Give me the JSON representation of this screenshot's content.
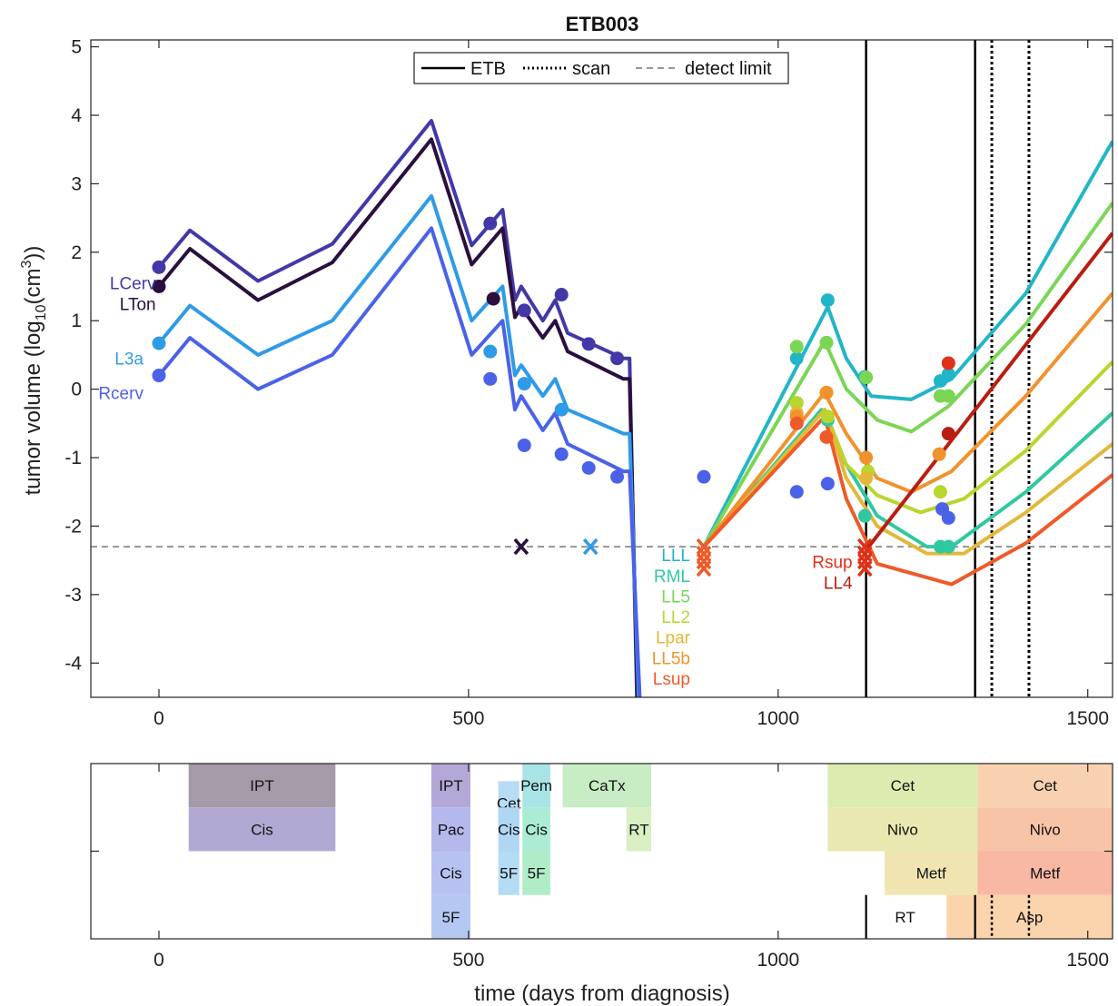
{
  "chart_data": [
    {
      "type": "line",
      "title": "ETB003",
      "xlabel": "",
      "ylabel_parts": [
        "tumor volume (log",
        "10",
        "(cm",
        "3",
        "))"
      ],
      "xlim": [
        -110,
        1540
      ],
      "ylim": [
        -4.5,
        5.1
      ],
      "xticks": [
        0,
        500,
        1000,
        1500
      ],
      "yticks": [
        5,
        4,
        3,
        2,
        1,
        0,
        -1,
        -2,
        -3,
        -4
      ],
      "legend": {
        "placement": "top-center",
        "entries": [
          {
            "label": "ETB",
            "style": "solid"
          },
          {
            "label": "scan",
            "style": "dotted"
          },
          {
            "label": "detect limit",
            "style": "dashed"
          }
        ]
      },
      "detect_limit": -2.3,
      "etb_days": [
        1142,
        1318
      ],
      "scan_days": [
        1345,
        1405
      ],
      "series": [
        {
          "name": "LCerv",
          "color": "#4338a8",
          "label_x": -5,
          "label_y": 1.55,
          "line": [
            [
              0,
              1.78
            ],
            [
              50,
              2.32
            ],
            [
              160,
              1.58
            ],
            [
              280,
              2.12
            ],
            [
              440,
              3.92
            ],
            [
              505,
              2.1
            ],
            [
              555,
              2.62
            ],
            [
              575,
              1.3
            ],
            [
              585,
              1.5
            ],
            [
              620,
              1.0
            ],
            [
              640,
              1.3
            ],
            [
              660,
              0.82
            ],
            [
              750,
              0.45
            ],
            [
              760,
              0.45
            ],
            [
              772,
              -4.6
            ]
          ],
          "points": [
            [
              0,
              1.78
            ],
            [
              535,
              2.42
            ],
            [
              590,
              1.15
            ],
            [
              650,
              1.38
            ],
            [
              694,
              0.66
            ],
            [
              740,
              0.45
            ]
          ]
        },
        {
          "name": "LTon",
          "color": "#2a0f3f",
          "label_x": -5,
          "label_y": 1.25,
          "line": [
            [
              0,
              1.5
            ],
            [
              50,
              2.05
            ],
            [
              160,
              1.3
            ],
            [
              280,
              1.85
            ],
            [
              440,
              3.65
            ],
            [
              505,
              1.82
            ],
            [
              555,
              2.35
            ],
            [
              575,
              1.05
            ],
            [
              585,
              1.2
            ],
            [
              620,
              0.75
            ],
            [
              640,
              1.0
            ],
            [
              660,
              0.55
            ],
            [
              750,
              0.15
            ],
            [
              760,
              0.15
            ],
            [
              773,
              -4.6
            ]
          ],
          "points": [
            [
              0,
              1.5
            ],
            [
              540,
              1.32
            ]
          ],
          "marker_x": [
            585
          ]
        },
        {
          "name": "L3a",
          "color": "#2f9be6",
          "label_x": -25,
          "label_y": 0.45,
          "line": [
            [
              0,
              0.67
            ],
            [
              50,
              1.22
            ],
            [
              160,
              0.5
            ],
            [
              280,
              1.0
            ],
            [
              440,
              2.82
            ],
            [
              505,
              1.0
            ],
            [
              555,
              1.5
            ],
            [
              575,
              0.2
            ],
            [
              585,
              0.35
            ],
            [
              620,
              -0.1
            ],
            [
              640,
              0.15
            ],
            [
              660,
              -0.3
            ],
            [
              750,
              -0.65
            ],
            [
              760,
              -0.65
            ],
            [
              775,
              -4.6
            ]
          ],
          "points": [
            [
              0,
              0.67
            ],
            [
              535,
              0.55
            ],
            [
              590,
              0.08
            ],
            [
              650,
              -0.3
            ]
          ],
          "marker_x": [
            697
          ]
        },
        {
          "name": "Rcerv",
          "color": "#4a62e8",
          "label_x": -25,
          "label_y": -0.05,
          "line": [
            [
              0,
              0.2
            ],
            [
              50,
              0.75
            ],
            [
              160,
              0.0
            ],
            [
              280,
              0.5
            ],
            [
              440,
              2.35
            ],
            [
              505,
              0.5
            ],
            [
              555,
              1.0
            ],
            [
              575,
              -0.3
            ],
            [
              585,
              -0.1
            ],
            [
              620,
              -0.6
            ],
            [
              640,
              -0.35
            ],
            [
              660,
              -0.8
            ],
            [
              750,
              -1.2
            ],
            [
              760,
              -1.2
            ],
            [
              777,
              -4.6
            ]
          ],
          "points": [
            [
              0,
              0.2
            ],
            [
              535,
              0.15
            ],
            [
              590,
              -0.82
            ],
            [
              650,
              -0.95
            ],
            [
              694,
              -1.15
            ],
            [
              740,
              -1.28
            ],
            [
              880,
              -1.28
            ],
            [
              1030,
              -1.5
            ],
            [
              1080,
              -1.38
            ],
            [
              1265,
              -1.75
            ],
            [
              1275,
              -1.88
            ]
          ]
        },
        {
          "name": "LLL",
          "color": "#22b5c8",
          "label_x": 858,
          "label_y": -2.42,
          "line": [
            [
              880,
              -2.3
            ],
            [
              1080,
              1.2
            ],
            [
              1110,
              0.45
            ],
            [
              1150,
              -0.1
            ],
            [
              1215,
              -0.15
            ],
            [
              1280,
              0.15
            ],
            [
              1400,
              1.4
            ],
            [
              1540,
              3.62
            ]
          ],
          "points": [
            [
              1030,
              0.45
            ],
            [
              1080,
              1.3
            ],
            [
              1140,
              0.18
            ],
            [
              1262,
              0.12
            ],
            [
              1275,
              0.22
            ]
          ]
        },
        {
          "name": "RML",
          "color": "#2fc8a0",
          "label_x": 858,
          "label_y": -2.72,
          "line": [
            [
              880,
              -2.3
            ],
            [
              1070,
              -0.3
            ],
            [
              1100,
              -0.95
            ],
            [
              1160,
              -1.85
            ],
            [
              1240,
              -2.3
            ],
            [
              1280,
              -2.3
            ],
            [
              1400,
              -1.5
            ],
            [
              1540,
              -0.35
            ]
          ],
          "points": [
            [
              1030,
              -0.2
            ],
            [
              1080,
              -0.45
            ],
            [
              1140,
              -1.85
            ],
            [
              1262,
              -2.3
            ],
            [
              1275,
              -2.3
            ]
          ]
        },
        {
          "name": "LL5",
          "color": "#7ad654",
          "label_x": 858,
          "label_y": -3.02,
          "line": [
            [
              880,
              -2.3
            ],
            [
              1075,
              0.7
            ],
            [
              1110,
              0.0
            ],
            [
              1160,
              -0.45
            ],
            [
              1215,
              -0.62
            ],
            [
              1275,
              -0.25
            ],
            [
              1400,
              0.95
            ],
            [
              1540,
              2.72
            ]
          ],
          "points": [
            [
              1030,
              0.62
            ],
            [
              1078,
              0.68
            ],
            [
              1142,
              0.17
            ],
            [
              1262,
              -0.1
            ],
            [
              1275,
              -0.1
            ]
          ]
        },
        {
          "name": "LL2",
          "color": "#b8d62e",
          "label_x": 858,
          "label_y": -3.32,
          "line": [
            [
              880,
              -2.3
            ],
            [
              1075,
              -0.3
            ],
            [
              1110,
              -1.1
            ],
            [
              1160,
              -1.55
            ],
            [
              1230,
              -1.8
            ],
            [
              1300,
              -1.6
            ],
            [
              1400,
              -0.9
            ],
            [
              1540,
              0.4
            ]
          ],
          "points": [
            [
              1030,
              -0.2
            ],
            [
              1080,
              -0.4
            ],
            [
              1145,
              -1.2
            ],
            [
              1262,
              -1.5
            ]
          ]
        },
        {
          "name": "Lpar",
          "color": "#e3b83a",
          "label_x": 858,
          "label_y": -3.62,
          "line": [
            [
              880,
              -2.3
            ],
            [
              1075,
              -0.3
            ],
            [
              1110,
              -1.3
            ],
            [
              1160,
              -2.0
            ],
            [
              1240,
              -2.4
            ],
            [
              1300,
              -2.4
            ],
            [
              1400,
              -1.8
            ],
            [
              1540,
              -0.8
            ]
          ],
          "points": [
            [
              1030,
              -0.35
            ],
            [
              1078,
              -0.05
            ],
            [
              1142,
              -1.3
            ]
          ]
        },
        {
          "name": "LL5b",
          "color": "#f0922e",
          "label_x": 858,
          "label_y": -3.92,
          "line": [
            [
              880,
              -2.3
            ],
            [
              1075,
              -0.05
            ],
            [
              1110,
              -0.65
            ],
            [
              1160,
              -1.3
            ],
            [
              1215,
              -1.5
            ],
            [
              1280,
              -1.2
            ],
            [
              1400,
              -0.1
            ],
            [
              1540,
              1.4
            ]
          ],
          "points": [
            [
              1030,
              -0.4
            ],
            [
              1078,
              -0.05
            ],
            [
              1142,
              -1.0
            ],
            [
              1260,
              -0.95
            ]
          ]
        },
        {
          "name": "Lsup",
          "color": "#ef5a28",
          "label_x": 858,
          "label_y": -4.22,
          "line": [
            [
              880,
              -2.3
            ],
            [
              1075,
              -0.4
            ],
            [
              1110,
              -1.6
            ],
            [
              1160,
              -2.55
            ],
            [
              1280,
              -2.85
            ],
            [
              1400,
              -2.25
            ],
            [
              1540,
              -1.25
            ]
          ],
          "points": [
            [
              1030,
              -0.5
            ],
            [
              1078,
              -0.7
            ]
          ],
          "marker_x": [
            880
          ]
        },
        {
          "name": "Rsup",
          "color": "#e03018",
          "label_x": 1120,
          "label_y": -2.52,
          "line": [],
          "points": [
            [
              1275,
              0.38
            ]
          ],
          "marker_x": [
            1140
          ]
        },
        {
          "name": "LL4",
          "color": "#b81e10",
          "label_x": 1120,
          "label_y": -2.82,
          "line": [
            [
              1142,
              -2.35
            ],
            [
              1540,
              2.28
            ]
          ],
          "points": [
            [
              1275,
              -0.65
            ]
          ]
        }
      ]
    },
    {
      "type": "bar",
      "title": "",
      "xlabel": "time (days from diagnosis)",
      "ylabel": "",
      "xlim": [
        -110,
        1540
      ],
      "xticks": [
        0,
        500,
        1000,
        1500
      ],
      "lanes": 4,
      "treatments": [
        {
          "label": "IPT",
          "start": 48,
          "end": 285,
          "lane": 0,
          "color": "#a59aa8"
        },
        {
          "label": "Cis",
          "start": 48,
          "end": 285,
          "lane": 1,
          "color": "#b0a9d4"
        },
        {
          "label": "IPT",
          "start": 440,
          "end": 503,
          "lane": 0,
          "color": "#b4a8d8"
        },
        {
          "label": "Pac",
          "start": 440,
          "end": 503,
          "lane": 1,
          "color": "#b4b8ec"
        },
        {
          "label": "Cis",
          "start": 440,
          "end": 503,
          "lane": 2,
          "color": "#b8c2f2"
        },
        {
          "label": "5F",
          "start": 440,
          "end": 503,
          "lane": 3,
          "color": "#b4c8f2"
        },
        {
          "label": "Cet",
          "start": 548,
          "end": 582,
          "lane": 0.4,
          "color": "#b8dcf4"
        },
        {
          "label": "Cis",
          "start": 548,
          "end": 582,
          "lane": 1,
          "color": "#b0d6f4"
        },
        {
          "label": "5F",
          "start": 548,
          "end": 582,
          "lane": 2,
          "color": "#b4dcf4"
        },
        {
          "label": "Pem",
          "start": 587,
          "end": 632,
          "lane": 0,
          "color": "#a8e4e6"
        },
        {
          "label": "Cis",
          "start": 587,
          "end": 632,
          "lane": 1,
          "color": "#acecd4"
        },
        {
          "label": "5F",
          "start": 587,
          "end": 632,
          "lane": 2,
          "color": "#b0ecc8"
        },
        {
          "label": "CaTx",
          "start": 652,
          "end": 795,
          "lane": 0,
          "color": "#c8ecc4"
        },
        {
          "label": "RT",
          "start": 755,
          "end": 795,
          "lane": 1,
          "color": "#d8f0c4"
        },
        {
          "label": "Cet",
          "start": 1080,
          "end": 1322,
          "lane": 0,
          "color": "#dcecb0"
        },
        {
          "label": "Nivo",
          "start": 1080,
          "end": 1322,
          "lane": 1,
          "color": "#e8e8b0"
        },
        {
          "label": "Metf",
          "start": 1172,
          "end": 1322,
          "lane": 2,
          "color": "#f0e4b0"
        },
        {
          "label": "RT",
          "start": 1140,
          "end": 1270,
          "lane": 3,
          "color": "#ffffff"
        },
        {
          "label": "Cet",
          "start": 1322,
          "end": 1540,
          "lane": 0,
          "color": "#f8d2b0"
        },
        {
          "label": "Nivo",
          "start": 1322,
          "end": 1540,
          "lane": 1,
          "color": "#f8c4a8"
        },
        {
          "label": "Metf",
          "start": 1322,
          "end": 1540,
          "lane": 2,
          "color": "#f8b8a4"
        },
        {
          "label": "Asp",
          "start": 1272,
          "end": 1540,
          "lane": 3,
          "color": "#fad4ac"
        }
      ]
    }
  ]
}
